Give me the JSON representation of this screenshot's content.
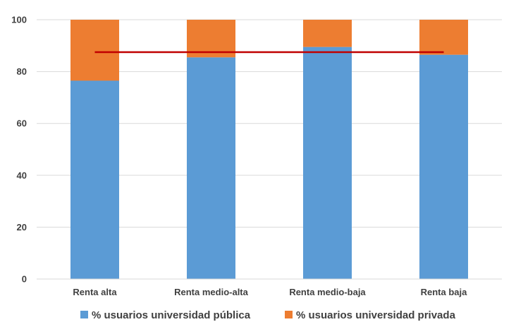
{
  "chart_data": {
    "type": "bar",
    "stacked": true,
    "categories": [
      "Renta alta",
      "Renta medio-alta",
      "Renta medio-baja",
      "Renta baja"
    ],
    "series": [
      {
        "name": "% usuarios universidad pública",
        "values": [
          76.5,
          85.5,
          89.5,
          86.5
        ],
        "color": "#5B9BD5"
      },
      {
        "name": "% usuarios universidad privada",
        "values": [
          23.5,
          14.5,
          10.5,
          13.5
        ],
        "color": "#ED7D31"
      }
    ],
    "reference_line": {
      "value": 87.5,
      "color": "#C00000"
    },
    "ylim": [
      0,
      100
    ],
    "y_ticks": [
      0,
      20,
      40,
      60,
      80,
      100
    ],
    "grid": true,
    "legend_position": "bottom"
  }
}
